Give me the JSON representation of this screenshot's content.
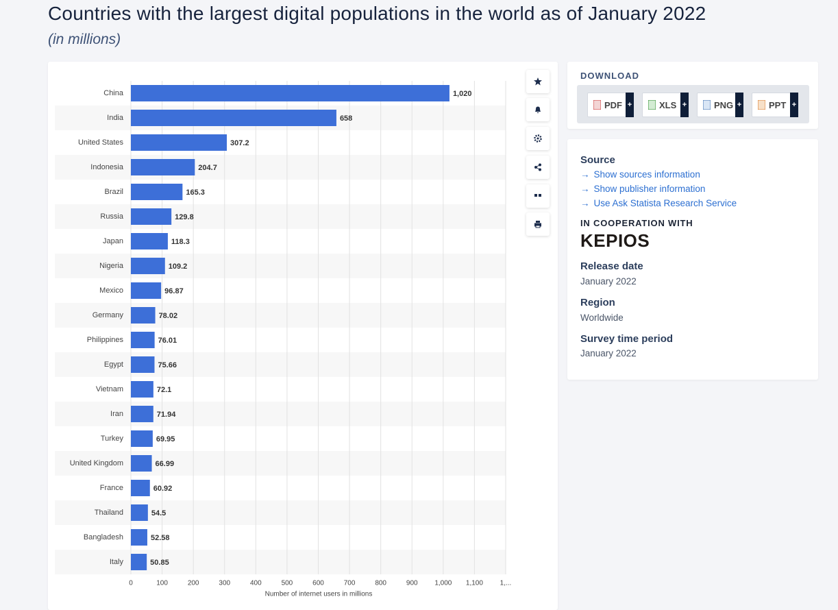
{
  "chart_data": {
    "type": "bar",
    "orientation": "horizontal",
    "title": "Countries with the largest digital populations in the world as of January 2022",
    "subtitle": "(in millions)",
    "x_label": "Number of internet users in millions",
    "categories": [
      "China",
      "India",
      "United States",
      "Indonesia",
      "Brazil",
      "Russia",
      "Japan",
      "Nigeria",
      "Mexico",
      "Germany",
      "Philippines",
      "Egypt",
      "Vietnam",
      "Iran",
      "Turkey",
      "United Kingdom",
      "France",
      "Thailand",
      "Bangladesh",
      "Italy"
    ],
    "values": [
      1020,
      658,
      307.2,
      204.7,
      165.3,
      129.8,
      118.3,
      109.2,
      96.87,
      78.02,
      76.01,
      75.66,
      72.1,
      71.94,
      69.95,
      66.99,
      60.92,
      54.5,
      52.58,
      50.85
    ],
    "value_labels": [
      "1,020",
      "658",
      "307.2",
      "204.7",
      "165.3",
      "129.8",
      "118.3",
      "109.2",
      "96.87",
      "78.02",
      "76.01",
      "75.66",
      "72.1",
      "71.94",
      "69.95",
      "66.99",
      "60.92",
      "54.5",
      "52.58",
      "50.85"
    ],
    "color": "#3d6fd8",
    "xlim": [
      0,
      1200
    ],
    "xticks": [
      0,
      100,
      200,
      300,
      400,
      500,
      600,
      700,
      800,
      900,
      {
        "value": 1000,
        "label": "1,000"
      },
      {
        "value": 1100,
        "label": "1,100"
      },
      {
        "value": 1200,
        "label": "1,..."
      }
    ],
    "grid": true
  },
  "download": {
    "title": "DOWNLOAD",
    "formats": [
      "PDF",
      "XLS",
      "PNG",
      "PPT"
    ],
    "plus": "+"
  },
  "info": {
    "source_title": "Source",
    "links": [
      "Show sources information",
      "Show publisher information",
      "Use Ask Statista Research Service"
    ],
    "cooperation_title": "IN COOPERATION WITH",
    "partner": "KEPIOS",
    "release_date_title": "Release date",
    "release_date": "January 2022",
    "region_title": "Region",
    "region": "Worldwide",
    "survey_title": "Survey time period",
    "survey_period": "January 2022"
  }
}
